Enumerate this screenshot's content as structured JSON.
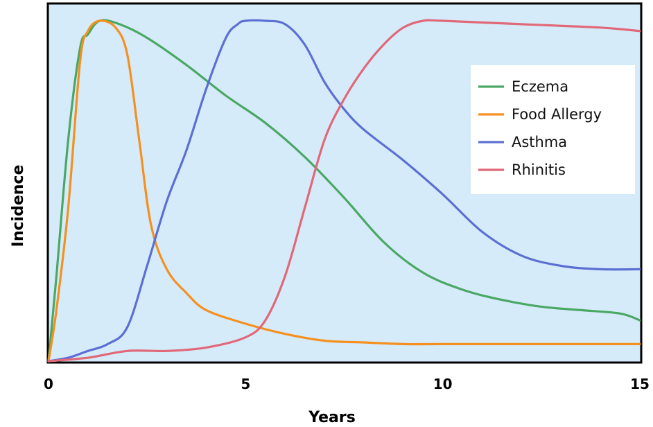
{
  "chart_data": {
    "type": "line",
    "title": "",
    "xlabel": "Years",
    "ylabel": "Incidence",
    "xlim": [
      0,
      15
    ],
    "ylim": [
      0,
      100
    ],
    "xticks": [
      0,
      5,
      10,
      15
    ],
    "xtick_labels": [
      "0",
      "5",
      "10",
      "15"
    ],
    "grid": false,
    "legend_position": "top-right",
    "background": "#d6ebfa",
    "series": [
      {
        "name": "Eczema",
        "color": "#4aa864",
        "x": [
          0,
          0.2,
          0.5,
          0.8,
          1.0,
          1.3,
          1.8,
          2.5,
          3.5,
          4.5,
          5.5,
          6.5,
          7.5,
          8.5,
          9.5,
          10.5,
          11.5,
          12.5,
          13.5,
          14.5,
          15
        ],
        "y": [
          0,
          25,
          65,
          92,
          96,
          100,
          99,
          95,
          87,
          78,
          70,
          60,
          48,
          35,
          26,
          21,
          18,
          16,
          15,
          14,
          12
        ]
      },
      {
        "name": "Food Allergy",
        "color": "#f5901e",
        "x": [
          0,
          0.2,
          0.5,
          0.8,
          1.0,
          1.3,
          1.7,
          2.0,
          2.3,
          2.6,
          3.0,
          3.5,
          4.0,
          5.0,
          6.0,
          7.0,
          8.0,
          9.0,
          10.0,
          12.0,
          15.0
        ],
        "y": [
          0,
          15,
          45,
          88,
          97,
          100,
          98,
          90,
          65,
          40,
          27,
          20,
          15,
          11,
          8,
          6,
          5.5,
          5,
          5,
          5,
          5
        ]
      },
      {
        "name": "Asthma",
        "color": "#5c6fd2",
        "x": [
          0,
          0.5,
          1.0,
          1.5,
          2.0,
          2.5,
          3.0,
          3.5,
          4.0,
          4.5,
          4.8,
          5.0,
          5.5,
          6.0,
          6.5,
          7.0,
          7.5,
          8.0,
          9.0,
          10.0,
          11.0,
          12.0,
          13.0,
          14.0,
          15.0
        ],
        "y": [
          0,
          1,
          3,
          5,
          10,
          28,
          47,
          62,
          80,
          95,
          99,
          100,
          100,
          99,
          93,
          82,
          74,
          68,
          59,
          49,
          38,
          31,
          28,
          27,
          27
        ]
      },
      {
        "name": "Rhinitis",
        "color": "#e06878",
        "x": [
          0,
          1.0,
          2.0,
          3.0,
          4.0,
          5.0,
          5.5,
          6.0,
          6.5,
          7.0,
          7.5,
          8.0,
          8.5,
          9.0,
          9.5,
          10.0,
          12.0,
          14.0,
          15.0
        ],
        "y": [
          0,
          1,
          3,
          3,
          4,
          7,
          12,
          25,
          45,
          65,
          77,
          86,
          93,
          98,
          100,
          100,
          99,
          98,
          97
        ]
      }
    ]
  }
}
